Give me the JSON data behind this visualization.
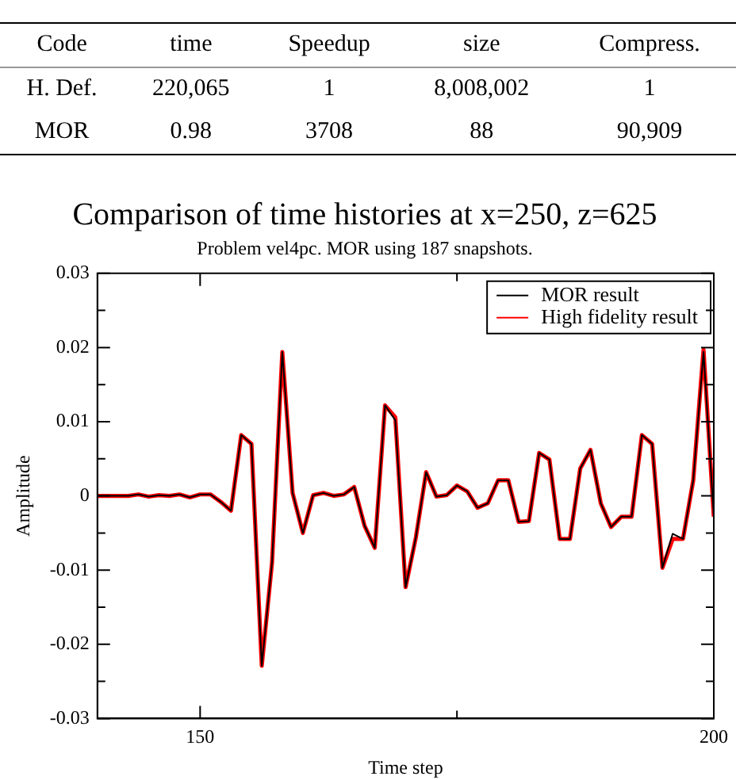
{
  "chart_data": [
    {
      "type": "other",
      "categories": [
        "Code",
        "time",
        "Speedup",
        "size",
        "Compress."
      ],
      "annotations": [
        "H. Def.",
        "220,065",
        "1",
        "8,008,002",
        "1",
        "MOR",
        "0.98",
        "3708",
        "88",
        "90,909"
      ]
    },
    {
      "type": "line",
      "title": "Comparison of time histories at x=250, z=625",
      "subtitle": "Problem vel4pc. MOR using 187 snapshots.",
      "xlabel": "Time step",
      "ylabel": "Amplitude",
      "x": [
        140,
        141,
        142,
        143,
        144,
        145,
        146,
        147,
        148,
        149,
        150,
        151,
        152,
        153,
        154,
        155,
        156,
        157,
        158,
        159,
        160,
        161,
        162,
        163,
        164,
        165,
        166,
        167,
        168,
        169,
        170,
        171,
        172,
        173,
        174,
        175,
        176,
        177,
        178,
        179,
        180,
        181,
        182,
        183,
        184,
        185,
        186,
        187,
        188,
        189,
        190,
        191,
        192,
        193,
        194,
        195,
        196,
        197,
        198,
        199,
        200
      ],
      "series": [
        {
          "name": "MOR result",
          "color": "#000000",
          "values": [
            0,
            0,
            0,
            0,
            0.0002,
            -0.0001,
            0.0001,
            0,
            0.0002,
            -0.0002,
            0.0002,
            0.0002,
            -0.0008,
            -0.002,
            0.0082,
            0.007,
            -0.0229,
            -0.009,
            0.0194,
            0.0004,
            -0.005,
            0.0001,
            0.0004,
            0,
            0.0002,
            0.0012,
            -0.004,
            -0.007,
            0.0122,
            0.0102,
            -0.0123,
            -0.0056,
            0.0032,
            -0.0001,
            0.0001,
            0.0014,
            0.0006,
            -0.0016,
            -0.001,
            0.0021,
            0.0021,
            -0.0035,
            -0.0034,
            0.0058,
            0.0049,
            -0.0058,
            -0.0058,
            0.0037,
            0.0062,
            -0.001,
            -0.0042,
            -0.0028,
            -0.0028,
            0.0082,
            0.007,
            -0.0097,
            -0.0051,
            -0.0058,
            0.0021,
            0.0194,
            -0.0028
          ]
        },
        {
          "name": "High fidelity result",
          "color": "#ff0000",
          "values": [
            0,
            0,
            0,
            0,
            0.0002,
            -0.0001,
            0.0001,
            0,
            0.0002,
            -0.0002,
            0.0002,
            0.0002,
            -0.0008,
            -0.002,
            0.0082,
            0.007,
            -0.0229,
            -0.009,
            0.0194,
            0.0004,
            -0.005,
            0.0001,
            0.0004,
            0,
            0.0002,
            0.0012,
            -0.004,
            -0.007,
            0.0122,
            0.0106,
            -0.0123,
            -0.0056,
            0.0032,
            -0.0001,
            0.0001,
            0.0014,
            0.0006,
            -0.0016,
            -0.001,
            0.0021,
            0.0021,
            -0.0035,
            -0.0034,
            0.0058,
            0.0049,
            -0.0058,
            -0.0058,
            0.0037,
            0.0062,
            -0.001,
            -0.0042,
            -0.0028,
            -0.0028,
            0.0082,
            0.007,
            -0.0097,
            -0.0058,
            -0.0058,
            0.0021,
            0.0197,
            -0.0028
          ]
        }
      ],
      "xlim": [
        140,
        200
      ],
      "xticks": [
        150,
        {
          "value": 175,
          "label": null
        },
        200
      ],
      "ylim": [
        -0.03,
        0.03
      ],
      "yticks": [
        -0.03,
        {
          "value": -0.025,
          "label": null
        },
        -0.02,
        {
          "value": -0.015,
          "label": null
        },
        -0.01,
        {
          "value": -0.005,
          "label": null
        },
        0,
        {
          "value": 0.005,
          "label": null
        },
        0.01,
        {
          "value": 0.015,
          "label": null
        },
        0.02,
        {
          "value": 0.025,
          "label": null
        },
        0.03
      ],
      "legend": "top right",
      "marker": "none",
      "line_style": "solid",
      "grid": false
    }
  ]
}
